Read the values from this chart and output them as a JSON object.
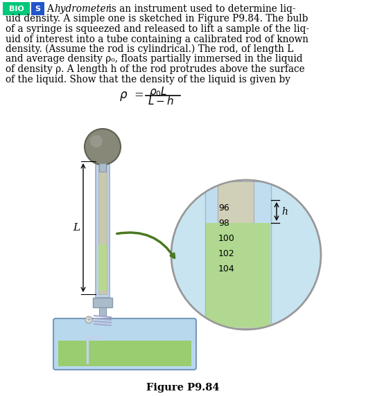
{
  "bg_color": "#ffffff",
  "bio_color": "#00c87a",
  "s_color": "#2255cc",
  "text_color": "#000000",
  "title": "Figure P9.84",
  "scale_values": [
    "96",
    "98",
    "100",
    "102",
    "104"
  ],
  "liquid_color": "#b0d890",
  "tube_bg_color": "#c8e4f0",
  "rod_color": "#d0d0b8",
  "arrow_color": "#4a7820",
  "bulb_color": "#888878",
  "bulb_dark": "#606055",
  "tube_color": "#b8cce0",
  "tube_edge": "#8899bb",
  "container_bg": "#b8d8ee",
  "container_edge": "#7799bb",
  "container_liquid": "#9acc70",
  "rod_edge": "#aaaaaa",
  "inner_tube_color": "#c0ddf0",
  "inner_tube_edge": "#99bbcc"
}
